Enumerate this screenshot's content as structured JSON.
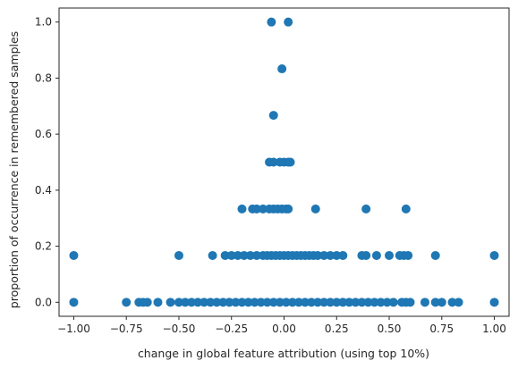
{
  "chart_data": {
    "type": "scatter",
    "title": "",
    "xlabel": "change in global feature attribution (using top 10%)",
    "ylabel": "proportion of occurrence in remembered samples",
    "xlim": [
      -1.07,
      1.07
    ],
    "ylim": [
      -0.05,
      1.05
    ],
    "xticks": [
      -1.0,
      -0.75,
      -0.5,
      -0.25,
      0.0,
      0.25,
      0.5,
      0.75,
      1.0
    ],
    "xtick_labels": [
      "−1.00",
      "−0.75",
      "−0.50",
      "−0.25",
      "0.00",
      "0.25",
      "0.50",
      "0.75",
      "1.00"
    ],
    "yticks": [
      0.0,
      0.2,
      0.4,
      0.6,
      0.8,
      1.0
    ],
    "ytick_labels": [
      "0.0",
      "0.2",
      "0.4",
      "0.6",
      "0.8",
      "1.0"
    ],
    "grid": false,
    "marker_color": "#1f77b4",
    "points": [
      {
        "x": -0.06,
        "y": 1.0
      },
      {
        "x": 0.02,
        "y": 1.0
      },
      {
        "x": -0.01,
        "y": 0.833
      },
      {
        "x": -0.05,
        "y": 0.667
      },
      {
        "x": -0.07,
        "y": 0.5
      },
      {
        "x": -0.05,
        "y": 0.5
      },
      {
        "x": -0.02,
        "y": 0.5
      },
      {
        "x": 0.0,
        "y": 0.5
      },
      {
        "x": 0.02,
        "y": 0.5
      },
      {
        "x": 0.03,
        "y": 0.5
      },
      {
        "x": -0.2,
        "y": 0.333
      },
      {
        "x": -0.15,
        "y": 0.333
      },
      {
        "x": -0.13,
        "y": 0.333
      },
      {
        "x": -0.1,
        "y": 0.333
      },
      {
        "x": -0.07,
        "y": 0.333
      },
      {
        "x": -0.05,
        "y": 0.333
      },
      {
        "x": -0.03,
        "y": 0.333
      },
      {
        "x": -0.01,
        "y": 0.333
      },
      {
        "x": 0.01,
        "y": 0.333
      },
      {
        "x": 0.02,
        "y": 0.333
      },
      {
        "x": 0.15,
        "y": 0.333
      },
      {
        "x": 0.39,
        "y": 0.333
      },
      {
        "x": 0.58,
        "y": 0.333
      },
      {
        "x": -1.0,
        "y": 0.167
      },
      {
        "x": -0.5,
        "y": 0.167
      },
      {
        "x": -0.34,
        "y": 0.167
      },
      {
        "x": -0.28,
        "y": 0.167
      },
      {
        "x": -0.25,
        "y": 0.167
      },
      {
        "x": -0.22,
        "y": 0.167
      },
      {
        "x": -0.19,
        "y": 0.167
      },
      {
        "x": -0.16,
        "y": 0.167
      },
      {
        "x": -0.13,
        "y": 0.167
      },
      {
        "x": -0.1,
        "y": 0.167
      },
      {
        "x": -0.08,
        "y": 0.167
      },
      {
        "x": -0.06,
        "y": 0.167
      },
      {
        "x": -0.04,
        "y": 0.167
      },
      {
        "x": -0.02,
        "y": 0.167
      },
      {
        "x": 0.0,
        "y": 0.167
      },
      {
        "x": 0.02,
        "y": 0.167
      },
      {
        "x": 0.04,
        "y": 0.167
      },
      {
        "x": 0.06,
        "y": 0.167
      },
      {
        "x": 0.08,
        "y": 0.167
      },
      {
        "x": 0.1,
        "y": 0.167
      },
      {
        "x": 0.12,
        "y": 0.167
      },
      {
        "x": 0.14,
        "y": 0.167
      },
      {
        "x": 0.16,
        "y": 0.167
      },
      {
        "x": 0.19,
        "y": 0.167
      },
      {
        "x": 0.22,
        "y": 0.167
      },
      {
        "x": 0.25,
        "y": 0.167
      },
      {
        "x": 0.28,
        "y": 0.167
      },
      {
        "x": 0.37,
        "y": 0.167
      },
      {
        "x": 0.39,
        "y": 0.167
      },
      {
        "x": 0.44,
        "y": 0.167
      },
      {
        "x": 0.5,
        "y": 0.167
      },
      {
        "x": 0.55,
        "y": 0.167
      },
      {
        "x": 0.57,
        "y": 0.167
      },
      {
        "x": 0.59,
        "y": 0.167
      },
      {
        "x": 0.72,
        "y": 0.167
      },
      {
        "x": 1.0,
        "y": 0.167
      },
      {
        "x": -1.0,
        "y": 0.0
      },
      {
        "x": -0.75,
        "y": 0.0
      },
      {
        "x": -0.69,
        "y": 0.0
      },
      {
        "x": -0.67,
        "y": 0.0
      },
      {
        "x": -0.65,
        "y": 0.0
      },
      {
        "x": -0.6,
        "y": 0.0
      },
      {
        "x": -0.54,
        "y": 0.0
      },
      {
        "x": -0.5,
        "y": 0.0
      },
      {
        "x": -0.47,
        "y": 0.0
      },
      {
        "x": -0.44,
        "y": 0.0
      },
      {
        "x": -0.41,
        "y": 0.0
      },
      {
        "x": -0.38,
        "y": 0.0
      },
      {
        "x": -0.35,
        "y": 0.0
      },
      {
        "x": -0.32,
        "y": 0.0
      },
      {
        "x": -0.29,
        "y": 0.0
      },
      {
        "x": -0.26,
        "y": 0.0
      },
      {
        "x": -0.23,
        "y": 0.0
      },
      {
        "x": -0.2,
        "y": 0.0
      },
      {
        "x": -0.17,
        "y": 0.0
      },
      {
        "x": -0.14,
        "y": 0.0
      },
      {
        "x": -0.11,
        "y": 0.0
      },
      {
        "x": -0.08,
        "y": 0.0
      },
      {
        "x": -0.05,
        "y": 0.0
      },
      {
        "x": -0.02,
        "y": 0.0
      },
      {
        "x": 0.01,
        "y": 0.0
      },
      {
        "x": 0.04,
        "y": 0.0
      },
      {
        "x": 0.07,
        "y": 0.0
      },
      {
        "x": 0.1,
        "y": 0.0
      },
      {
        "x": 0.13,
        "y": 0.0
      },
      {
        "x": 0.16,
        "y": 0.0
      },
      {
        "x": 0.19,
        "y": 0.0
      },
      {
        "x": 0.22,
        "y": 0.0
      },
      {
        "x": 0.25,
        "y": 0.0
      },
      {
        "x": 0.28,
        "y": 0.0
      },
      {
        "x": 0.31,
        "y": 0.0
      },
      {
        "x": 0.34,
        "y": 0.0
      },
      {
        "x": 0.37,
        "y": 0.0
      },
      {
        "x": 0.4,
        "y": 0.0
      },
      {
        "x": 0.43,
        "y": 0.0
      },
      {
        "x": 0.46,
        "y": 0.0
      },
      {
        "x": 0.49,
        "y": 0.0
      },
      {
        "x": 0.52,
        "y": 0.0
      },
      {
        "x": 0.56,
        "y": 0.0
      },
      {
        "x": 0.58,
        "y": 0.0
      },
      {
        "x": 0.6,
        "y": 0.0
      },
      {
        "x": 0.67,
        "y": 0.0
      },
      {
        "x": 0.72,
        "y": 0.0
      },
      {
        "x": 0.75,
        "y": 0.0
      },
      {
        "x": 0.8,
        "y": 0.0
      },
      {
        "x": 0.83,
        "y": 0.0
      },
      {
        "x": 1.0,
        "y": 0.0
      }
    ]
  }
}
